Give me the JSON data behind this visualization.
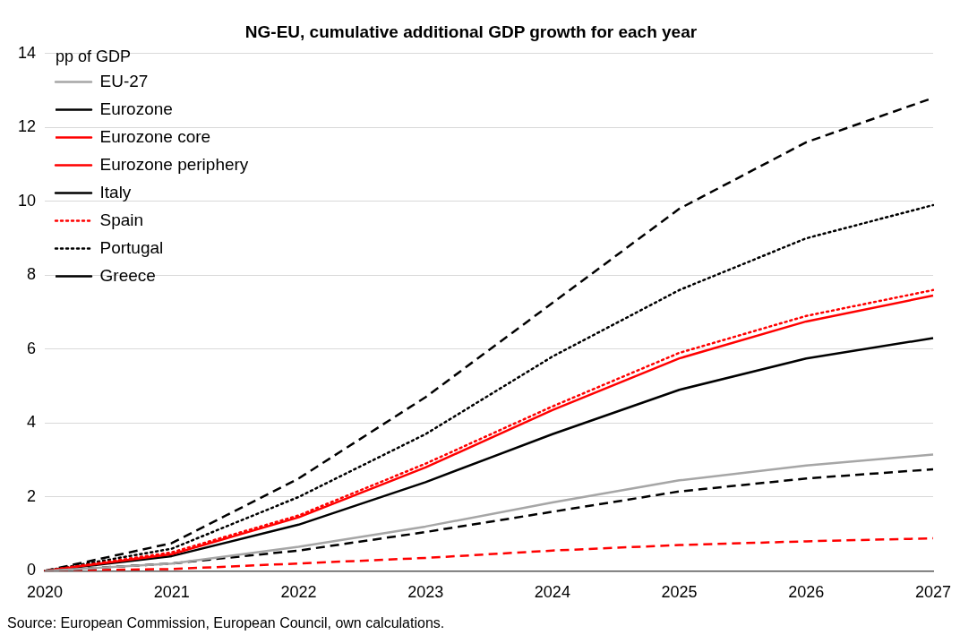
{
  "chart_data": {
    "type": "line",
    "title": "NG-EU, cumulative additional GDP growth for each year",
    "ylabel": "pp of GDP",
    "categories": [
      "2020",
      "2021",
      "2022",
      "2023",
      "2024",
      "2025",
      "2026",
      "2027"
    ],
    "series": [
      {
        "name": "EU-27",
        "color": "#a6a6a6",
        "line_style": "solid",
        "values": [
          0,
          0.2,
          0.65,
          1.2,
          1.85,
          2.45,
          2.85,
          3.15
        ]
      },
      {
        "name": "Eurozone",
        "color": "#000000",
        "line_style": "dashed",
        "values": [
          0,
          0.2,
          0.55,
          1.05,
          1.6,
          2.15,
          2.5,
          2.75
        ]
      },
      {
        "name": "Eurozone core",
        "color": "#ff0000",
        "line_style": "dashed",
        "values": [
          0,
          0.05,
          0.2,
          0.35,
          0.55,
          0.7,
          0.8,
          0.88
        ]
      },
      {
        "name": "Eurozone periphery",
        "color": "#ff0000",
        "line_style": "solid",
        "values": [
          0,
          0.45,
          1.45,
          2.8,
          4.35,
          5.75,
          6.75,
          7.45
        ]
      },
      {
        "name": "Italy",
        "color": "#000000",
        "line_style": "solid",
        "values": [
          0,
          0.4,
          1.25,
          2.4,
          3.7,
          4.9,
          5.75,
          6.3
        ]
      },
      {
        "name": "Spain",
        "color": "#ff0000",
        "line_style": "dotted",
        "values": [
          0,
          0.5,
          1.5,
          2.9,
          4.45,
          5.9,
          6.9,
          7.6
        ]
      },
      {
        "name": "Portugal",
        "color": "#000000",
        "line_style": "dotted",
        "values": [
          0,
          0.6,
          2.0,
          3.7,
          5.8,
          7.6,
          9.0,
          9.9
        ]
      },
      {
        "name": "Greece",
        "color": "#000000",
        "line_style": "dashed",
        "values": [
          0,
          0.75,
          2.5,
          4.7,
          7.25,
          9.8,
          11.6,
          12.8
        ]
      }
    ],
    "ylim": [
      0,
      14
    ],
    "yticks": [
      0,
      2,
      4,
      6,
      8,
      10,
      12,
      14
    ],
    "grid": "y",
    "legend": "top left",
    "marker": "none",
    "annotations": [
      "Source: European Commission, European Council, own calculations."
    ]
  }
}
